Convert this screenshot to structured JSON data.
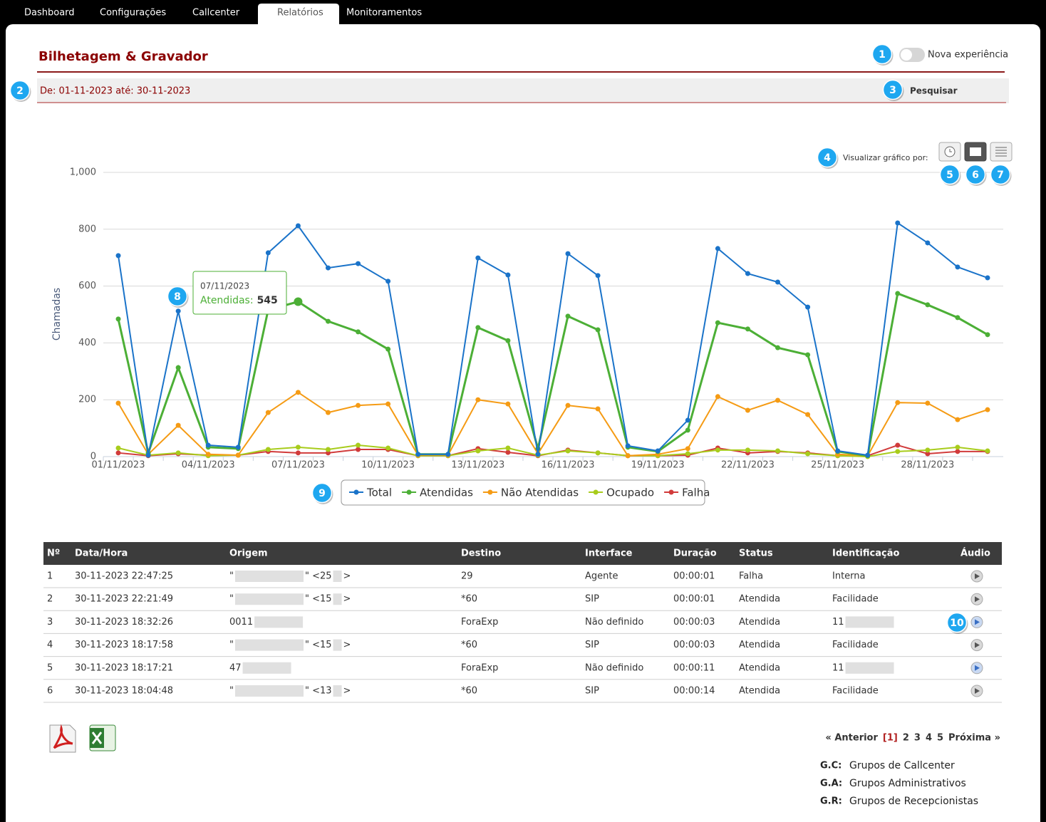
{
  "tabs": [
    "Dashboard",
    "Configurações",
    "Callcenter",
    "Relatórios",
    "Monitoramentos"
  ],
  "active_tab": 3,
  "header": {
    "title": "Bilhetagem & Gravador",
    "toggle_label": "Nova experiência"
  },
  "filter": {
    "period": "De: 01-11-2023 até: 30-11-2023",
    "search": "Pesquisar"
  },
  "view_label": "Visualizar gráfico por:",
  "chart_data": {
    "type": "line",
    "y_label": "Chamadas",
    "categories": [
      "01/11/2023",
      null,
      null,
      "04/11/2023",
      null,
      null,
      "07/11/2023",
      null,
      null,
      "10/11/2023",
      null,
      null,
      "13/11/2023",
      null,
      null,
      "16/11/2023",
      null,
      null,
      "19/11/2023",
      null,
      null,
      "22/11/2023",
      null,
      null,
      "25/11/2023",
      null,
      null,
      "28/11/2023",
      null,
      null
    ],
    "series": [
      {
        "name": "Total",
        "color": "#1a73c9",
        "values": [
          707,
          5,
          512,
          40,
          33,
          717,
          812,
          664,
          679,
          617,
          8,
          8,
          699,
          639,
          8,
          714,
          637,
          38,
          20,
          128,
          732,
          644,
          614,
          526,
          20,
          5,
          822,
          752,
          667,
          629
        ]
      },
      {
        "name": "Atendidas",
        "color": "#4caf36",
        "values": [
          484,
          13,
          313,
          33,
          28,
          516,
          545,
          476,
          439,
          378,
          8,
          8,
          454,
          408,
          28,
          494,
          446,
          33,
          18,
          93,
          471,
          449,
          383,
          358,
          18,
          3,
          574,
          534,
          489,
          429
        ]
      },
      {
        "name": "Não Atendidas",
        "color": "#f59b14",
        "values": [
          188,
          8,
          110,
          8,
          5,
          155,
          226,
          155,
          180,
          185,
          5,
          5,
          200,
          185,
          10,
          180,
          168,
          3,
          8,
          28,
          211,
          163,
          198,
          148,
          8,
          3,
          190,
          188,
          130,
          165
        ]
      },
      {
        "name": "Ocupado",
        "color": "#a8cc1c",
        "values": [
          30,
          5,
          13,
          3,
          5,
          25,
          33,
          25,
          40,
          30,
          3,
          3,
          20,
          30,
          5,
          20,
          13,
          3,
          3,
          10,
          23,
          23,
          20,
          10,
          3,
          0,
          18,
          23,
          33,
          20
        ]
      },
      {
        "name": "Falha",
        "color": "#d13b3b",
        "values": [
          13,
          3,
          10,
          5,
          5,
          18,
          13,
          13,
          25,
          25,
          3,
          3,
          28,
          15,
          3,
          23,
          13,
          3,
          3,
          5,
          30,
          13,
          18,
          13,
          3,
          3,
          40,
          10,
          18,
          18
        ]
      }
    ],
    "ylim": [
      0,
      1000
    ],
    "yticks": [
      0,
      200,
      400,
      600,
      800,
      {
        "value": 1000,
        "label": "1,000"
      }
    ],
    "grid": true,
    "tooltip": {
      "category": 6,
      "series": 1,
      "label": "Atendidas:"
    }
  },
  "table": {
    "headers": [
      "Nº",
      "Data/Hora",
      "Origem",
      "Destino",
      "Interface",
      "Duração",
      "Status",
      "Identificação",
      "Áudio"
    ],
    "rows": [
      [
        "1",
        "30-11-2023 22:47:25",
        [
          "\"",
          "\" <25",
          ">"
        ],
        "29",
        "Agente",
        "00:00:01",
        "Falha",
        "Interna"
      ],
      [
        "2",
        "30-11-2023 22:21:49",
        [
          "\"",
          "\" <15",
          ">"
        ],
        "*60",
        "SIP",
        "00:00:01",
        "Atendida",
        "Facilidade"
      ],
      [
        "3",
        "30-11-2023 18:32:26",
        [
          "0011"
        ],
        "ForaExp",
        "Não definido",
        "00:00:03",
        "Atendida",
        [
          "11"
        ]
      ],
      [
        "4",
        "30-11-2023 18:17:58",
        [
          "\"",
          "\" <15",
          ">"
        ],
        "*60",
        "SIP",
        "00:00:03",
        "Atendida",
        "Facilidade"
      ],
      [
        "5",
        "30-11-2023 18:17:21",
        [
          "47"
        ],
        "ForaExp",
        "Não definido",
        "00:00:11",
        "Atendida",
        [
          "11"
        ]
      ],
      [
        "6",
        "30-11-2023 18:04:48",
        [
          "\"",
          "\" <13",
          ">"
        ],
        "*60",
        "SIP",
        "00:00:14",
        "Atendida",
        "Facilidade"
      ]
    ]
  },
  "pagination": {
    "prev": "« Anterior",
    "current": "[1]",
    "pages": [
      "2",
      "3",
      "4",
      "5"
    ],
    "next": "Próxima »"
  },
  "glossary": [
    [
      "G.C:",
      "Grupos de Callcenter"
    ],
    [
      "G.A:",
      "Grupos Administrativos"
    ],
    [
      "G.R:",
      "Grupos de Recepcionistas"
    ]
  ],
  "callouts": [
    1,
    2,
    3,
    4,
    5,
    6,
    7,
    8,
    9,
    10
  ]
}
